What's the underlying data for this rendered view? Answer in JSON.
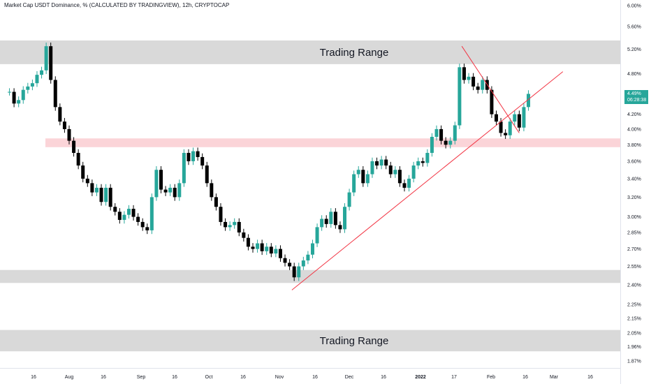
{
  "header": {
    "title": "Market Cap USDT Dominance, % (CALCULATED BY TRADINGVIEW), 12h, CRYPTOCAP"
  },
  "price_tag": {
    "value": "4.49%",
    "countdown": "06:28:38"
  },
  "colors": {
    "up": "#26a69a",
    "down": "#000000",
    "zone_gray": "#d9d9d9",
    "zone_red": "#fbd4d8",
    "trendline": "#f23645",
    "accent": "#26a69a"
  },
  "chart_data": {
    "type": "candlestick",
    "title": "Market Cap USDT Dominance, % (CALCULATED BY TRADINGVIEW), 12h, CRYPTOCAP",
    "y_axis": {
      "scale": "log",
      "tick_labels": [
        "6.00%",
        "5.60%",
        "5.20%",
        "4.80%",
        "4.40%",
        "4.20%",
        "4.00%",
        "3.80%",
        "3.60%",
        "3.40%",
        "3.20%",
        "3.00%",
        "2.85%",
        "2.70%",
        "2.55%",
        "2.40%",
        "2.25%",
        "2.15%",
        "2.05%",
        "1.96%",
        "1.87%"
      ],
      "tick_values": [
        6.0,
        5.6,
        5.2,
        4.8,
        4.4,
        4.2,
        4.0,
        3.8,
        3.6,
        3.4,
        3.2,
        3.0,
        2.85,
        2.7,
        2.55,
        2.4,
        2.25,
        2.15,
        2.05,
        1.96,
        1.87
      ]
    },
    "x_axis": {
      "tick_labels": [
        "16",
        "Aug",
        "16",
        "Sep",
        "16",
        "Oct",
        "16",
        "Nov",
        "16",
        "Dec",
        "16",
        "2022",
        "17",
        "Feb",
        "16",
        "Mar",
        "16"
      ],
      "bold_index": 11
    },
    "zones": [
      {
        "kind": "gray",
        "from": 4.95,
        "to": 5.35,
        "label": "Trading Range"
      },
      {
        "kind": "red",
        "from": 3.77,
        "to": 3.88,
        "label": ""
      },
      {
        "kind": "gray",
        "from": 2.415,
        "to": 2.52,
        "label": ""
      },
      {
        "kind": "gray",
        "from": 1.93,
        "to": 2.07,
        "label": "Trading Range"
      }
    ],
    "trendlines": [
      {
        "from": {
          "x": "2021-11-06",
          "y": 2.36
        },
        "to": {
          "x": "2022-03-04",
          "y": 4.83
        }
      },
      {
        "from": {
          "x": "2022-01-19",
          "y": 5.25
        },
        "to": {
          "x": "2022-02-13",
          "y": 3.95
        }
      }
    ],
    "last_price": 4.49,
    "series": [
      {
        "points": [
          {
            "d": "2021-07-06",
            "y": 4.52
          },
          {
            "d": "2021-07-08",
            "y": 4.35
          },
          {
            "d": "2021-07-10",
            "y": 4.4
          },
          {
            "d": "2021-07-12",
            "y": 4.55
          },
          {
            "d": "2021-07-14",
            "y": 4.6
          },
          {
            "d": "2021-07-16",
            "y": 4.65
          },
          {
            "d": "2021-07-18",
            "y": 4.78
          },
          {
            "d": "2021-07-20",
            "y": 4.85
          },
          {
            "d": "2021-07-22",
            "y": 5.25
          },
          {
            "d": "2021-07-24",
            "y": 4.7
          },
          {
            "d": "2021-07-26",
            "y": 4.3
          },
          {
            "d": "2021-07-28",
            "y": 4.1
          },
          {
            "d": "2021-07-30",
            "y": 4.0
          },
          {
            "d": "2021-08-01",
            "y": 3.85
          },
          {
            "d": "2021-08-03",
            "y": 3.7
          },
          {
            "d": "2021-08-05",
            "y": 3.55
          },
          {
            "d": "2021-08-07",
            "y": 3.4
          },
          {
            "d": "2021-08-09",
            "y": 3.35
          },
          {
            "d": "2021-08-11",
            "y": 3.25
          },
          {
            "d": "2021-08-13",
            "y": 3.3
          },
          {
            "d": "2021-08-15",
            "y": 3.15
          },
          {
            "d": "2021-08-17",
            "y": 3.3
          },
          {
            "d": "2021-08-19",
            "y": 3.1
          },
          {
            "d": "2021-08-21",
            "y": 3.05
          },
          {
            "d": "2021-08-23",
            "y": 2.97
          },
          {
            "d": "2021-08-25",
            "y": 3.02
          },
          {
            "d": "2021-08-27",
            "y": 3.08
          },
          {
            "d": "2021-08-29",
            "y": 3.0
          },
          {
            "d": "2021-08-31",
            "y": 2.95
          },
          {
            "d": "2021-09-02",
            "y": 2.9
          },
          {
            "d": "2021-09-04",
            "y": 2.87
          },
          {
            "d": "2021-09-06",
            "y": 3.2
          },
          {
            "d": "2021-09-08",
            "y": 3.5
          },
          {
            "d": "2021-09-10",
            "y": 3.28
          },
          {
            "d": "2021-09-12",
            "y": 3.25
          },
          {
            "d": "2021-09-14",
            "y": 3.3
          },
          {
            "d": "2021-09-16",
            "y": 3.2
          },
          {
            "d": "2021-09-18",
            "y": 3.35
          },
          {
            "d": "2021-09-20",
            "y": 3.7
          },
          {
            "d": "2021-09-22",
            "y": 3.6
          },
          {
            "d": "2021-09-24",
            "y": 3.72
          },
          {
            "d": "2021-09-26",
            "y": 3.65
          },
          {
            "d": "2021-09-28",
            "y": 3.55
          },
          {
            "d": "2021-09-30",
            "y": 3.35
          },
          {
            "d": "2021-10-02",
            "y": 3.2
          },
          {
            "d": "2021-10-04",
            "y": 3.1
          },
          {
            "d": "2021-10-06",
            "y": 2.95
          },
          {
            "d": "2021-10-08",
            "y": 2.9
          },
          {
            "d": "2021-10-10",
            "y": 2.92
          },
          {
            "d": "2021-10-12",
            "y": 2.95
          },
          {
            "d": "2021-10-14",
            "y": 2.85
          },
          {
            "d": "2021-10-16",
            "y": 2.8
          },
          {
            "d": "2021-10-18",
            "y": 2.72
          },
          {
            "d": "2021-10-20",
            "y": 2.7
          },
          {
            "d": "2021-10-22",
            "y": 2.75
          },
          {
            "d": "2021-10-24",
            "y": 2.68
          },
          {
            "d": "2021-10-26",
            "y": 2.72
          },
          {
            "d": "2021-10-28",
            "y": 2.66
          },
          {
            "d": "2021-10-30",
            "y": 2.7
          },
          {
            "d": "2021-11-01",
            "y": 2.62
          },
          {
            "d": "2021-11-03",
            "y": 2.58
          },
          {
            "d": "2021-11-05",
            "y": 2.55
          },
          {
            "d": "2021-11-07",
            "y": 2.46
          },
          {
            "d": "2021-11-09",
            "y": 2.55
          },
          {
            "d": "2021-11-11",
            "y": 2.6
          },
          {
            "d": "2021-11-13",
            "y": 2.65
          },
          {
            "d": "2021-11-15",
            "y": 2.75
          },
          {
            "d": "2021-11-17",
            "y": 2.9
          },
          {
            "d": "2021-11-19",
            "y": 2.98
          },
          {
            "d": "2021-11-21",
            "y": 2.93
          },
          {
            "d": "2021-11-23",
            "y": 3.05
          },
          {
            "d": "2021-11-25",
            "y": 2.92
          },
          {
            "d": "2021-11-27",
            "y": 2.88
          },
          {
            "d": "2021-11-29",
            "y": 3.1
          },
          {
            "d": "2021-12-01",
            "y": 3.25
          },
          {
            "d": "2021-12-03",
            "y": 3.45
          },
          {
            "d": "2021-12-05",
            "y": 3.5
          },
          {
            "d": "2021-12-07",
            "y": 3.35
          },
          {
            "d": "2021-12-09",
            "y": 3.45
          },
          {
            "d": "2021-12-11",
            "y": 3.6
          },
          {
            "d": "2021-12-13",
            "y": 3.55
          },
          {
            "d": "2021-12-15",
            "y": 3.62
          },
          {
            "d": "2021-12-17",
            "y": 3.55
          },
          {
            "d": "2021-12-19",
            "y": 3.45
          },
          {
            "d": "2021-12-21",
            "y": 3.5
          },
          {
            "d": "2021-12-23",
            "y": 3.35
          },
          {
            "d": "2021-12-25",
            "y": 3.3
          },
          {
            "d": "2021-12-27",
            "y": 3.4
          },
          {
            "d": "2021-12-29",
            "y": 3.55
          },
          {
            "d": "2021-12-31",
            "y": 3.6
          },
          {
            "d": "2022-01-02",
            "y": 3.58
          },
          {
            "d": "2022-01-04",
            "y": 3.7
          },
          {
            "d": "2022-01-06",
            "y": 3.9
          },
          {
            "d": "2022-01-08",
            "y": 4.0
          },
          {
            "d": "2022-01-10",
            "y": 3.85
          },
          {
            "d": "2022-01-12",
            "y": 3.8
          },
          {
            "d": "2022-01-14",
            "y": 3.85
          },
          {
            "d": "2022-01-16",
            "y": 4.05
          },
          {
            "d": "2022-01-18",
            "y": 4.9
          },
          {
            "d": "2022-01-20",
            "y": 4.7
          },
          {
            "d": "2022-01-22",
            "y": 4.75
          },
          {
            "d": "2022-01-24",
            "y": 4.6
          },
          {
            "d": "2022-01-26",
            "y": 4.55
          },
          {
            "d": "2022-01-28",
            "y": 4.7
          },
          {
            "d": "2022-01-30",
            "y": 4.55
          },
          {
            "d": "2022-02-01",
            "y": 4.2
          },
          {
            "d": "2022-02-03",
            "y": 4.1
          },
          {
            "d": "2022-02-05",
            "y": 3.95
          },
          {
            "d": "2022-02-07",
            "y": 3.92
          },
          {
            "d": "2022-02-09",
            "y": 4.1
          },
          {
            "d": "2022-02-11",
            "y": 4.2
          },
          {
            "d": "2022-02-13",
            "y": 4.02
          },
          {
            "d": "2022-02-15",
            "y": 4.3
          },
          {
            "d": "2022-02-17",
            "y": 4.49
          }
        ]
      }
    ]
  }
}
